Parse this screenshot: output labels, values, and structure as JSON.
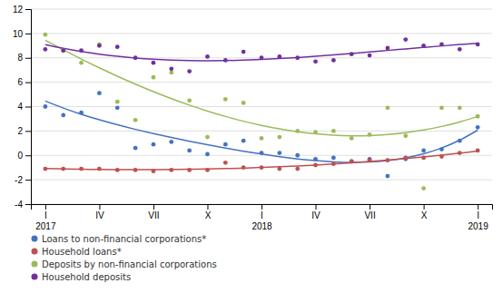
{
  "chart_data": {
    "type": "scatter",
    "categories": [
      "I\n2017",
      null,
      null,
      "IV",
      null,
      null,
      "VII",
      null,
      null,
      "X",
      null,
      null,
      "I\n2018",
      null,
      null,
      "IV",
      null,
      null,
      "VII",
      null,
      null,
      "X",
      null,
      null,
      "I\n2019"
    ],
    "series": [
      {
        "name": "Loans to non-financial corporations*",
        "color": "#4472c4",
        "values": [
          4.0,
          3.3,
          3.5,
          5.1,
          3.9,
          0.6,
          0.9,
          1.1,
          0.4,
          0.1,
          0.9,
          1.2,
          0.2,
          0.2,
          0.0,
          -0.3,
          -0.2,
          -0.5,
          -0.3,
          -1.7,
          -0.3,
          0.4,
          0.5,
          1.2,
          2.3
        ]
      },
      {
        "name": "Household loans*",
        "color": "#c0504d",
        "values": [
          -1.1,
          -1.1,
          -1.1,
          -1.1,
          -1.2,
          -1.2,
          -1.3,
          -1.2,
          -1.2,
          -1.2,
          -0.6,
          -1.0,
          -1.0,
          -1.1,
          -1.1,
          -0.8,
          -0.7,
          -0.5,
          -0.4,
          -0.4,
          -0.2,
          -0.2,
          -0.1,
          0.2,
          0.4
        ]
      },
      {
        "name": "Deposits by non-financial corporations",
        "color": "#9bbb59",
        "values": [
          9.9,
          8.6,
          7.6,
          9.1,
          4.4,
          2.9,
          6.4,
          6.8,
          4.5,
          1.5,
          4.6,
          4.3,
          1.4,
          1.5,
          2.0,
          1.9,
          2.0,
          1.4,
          1.7,
          3.9,
          1.6,
          -2.7,
          3.9,
          3.9,
          3.2
        ]
      },
      {
        "name": "Household deposits",
        "color": "#7030a0",
        "values": [
          8.7,
          8.6,
          8.6,
          9.0,
          8.9,
          8.0,
          7.6,
          7.1,
          6.9,
          8.1,
          7.8,
          8.5,
          8.0,
          8.1,
          8.0,
          7.7,
          7.8,
          8.3,
          8.2,
          8.8,
          9.5,
          9.0,
          9.1,
          8.7,
          9.1
        ]
      }
    ],
    "ylim": [
      -4,
      12
    ],
    "yticks": [
      -4,
      -2,
      0,
      2,
      4,
      6,
      8,
      10,
      12
    ],
    "grid": true,
    "legend": "lower left"
  }
}
